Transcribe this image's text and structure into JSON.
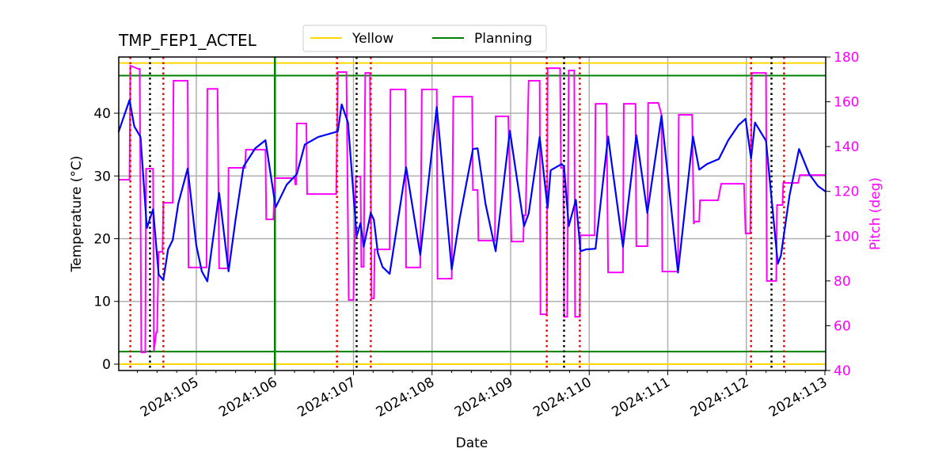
{
  "chart_data": {
    "type": "line",
    "title": "TMP_FEP1_ACTEL",
    "xlabel": "Date",
    "ylabel": "Temperature ($^\\circ$C)",
    "ylabel_display": "Temperature (°C)",
    "y2label": "Pitch (deg)",
    "xlim": [
      104.0126,
      113.01
    ],
    "ylim": [
      -1.01,
      48.96
    ],
    "y2lim": [
      40,
      180
    ],
    "grid": true,
    "legend_placement": "top-center",
    "x_ticks": [
      105,
      106,
      107,
      108,
      109,
      110,
      111,
      112,
      113
    ],
    "x_tick_labels": [
      "2024:105",
      "2024:106",
      "2024:107",
      "2024:108",
      "2024:109",
      "2024:110",
      "2024:111",
      "2024:112",
      "2024:113"
    ],
    "y_ticks": [
      0,
      10,
      20,
      30,
      40
    ],
    "y2_ticks": [
      40,
      60,
      80,
      100,
      120,
      140,
      160,
      180
    ],
    "colors": {
      "temperature": "#0000ff",
      "pitch": "#ff00ff",
      "yellow": "#ffd700",
      "planning": "#008000",
      "red_marker": "#ff0000",
      "black_marker": "#000000",
      "grid": "#b0b0b0"
    },
    "legend": [
      {
        "label": "Yellow",
        "color": "#ffd700"
      },
      {
        "label": "Planning",
        "color": "#008000"
      }
    ],
    "limit_lines": {
      "yellow": [
        48,
        0
      ],
      "planning": [
        46,
        2
      ]
    },
    "planning_vline": 106.0,
    "red_vlines": [
      104.16,
      104.58,
      106.79,
      107.22,
      109.46,
      109.88,
      112.06,
      112.48
    ],
    "black_vlines": [
      104.41,
      107.04,
      109.68,
      112.32
    ],
    "temperature": [
      [
        104.01,
        37.0
      ],
      [
        104.15,
        42.1
      ],
      [
        104.21,
        37.9
      ],
      [
        104.29,
        36.2
      ],
      [
        104.37,
        21.7
      ],
      [
        104.45,
        24.7
      ],
      [
        104.52,
        14.3
      ],
      [
        104.58,
        13.4
      ],
      [
        104.64,
        18.3
      ],
      [
        104.7,
        19.8
      ],
      [
        104.77,
        25.6
      ],
      [
        104.89,
        31.2
      ],
      [
        105.0,
        18.9
      ],
      [
        105.07,
        14.8
      ],
      [
        105.14,
        13.2
      ],
      [
        105.29,
        27.3
      ],
      [
        105.41,
        14.8
      ],
      [
        105.5,
        23.1
      ],
      [
        105.6,
        31.5
      ],
      [
        105.75,
        34.4
      ],
      [
        105.88,
        35.7
      ],
      [
        106.01,
        25.0
      ],
      [
        106.15,
        28.6
      ],
      [
        106.28,
        30.3
      ],
      [
        106.38,
        35.0
      ],
      [
        106.55,
        36.2
      ],
      [
        106.8,
        37.1
      ],
      [
        106.85,
        41.4
      ],
      [
        106.93,
        38.5
      ],
      [
        107.04,
        20.4
      ],
      [
        107.09,
        22.5
      ],
      [
        107.13,
        18.7
      ],
      [
        107.22,
        24.1
      ],
      [
        107.26,
        23.0
      ],
      [
        107.31,
        17.7
      ],
      [
        107.37,
        15.5
      ],
      [
        107.46,
        14.4
      ],
      [
        107.67,
        31.4
      ],
      [
        107.85,
        17.4
      ],
      [
        108.06,
        41.0
      ],
      [
        108.25,
        15.1
      ],
      [
        108.35,
        23.1
      ],
      [
        108.52,
        34.3
      ],
      [
        108.58,
        34.4
      ],
      [
        108.68,
        25.6
      ],
      [
        108.81,
        18.0
      ],
      [
        108.99,
        37.2
      ],
      [
        109.17,
        22.0
      ],
      [
        109.23,
        24.0
      ],
      [
        109.37,
        36.2
      ],
      [
        109.47,
        24.9
      ],
      [
        109.51,
        30.9
      ],
      [
        109.65,
        31.9
      ],
      [
        109.68,
        31.5
      ],
      [
        109.74,
        22.0
      ],
      [
        109.83,
        26.2
      ],
      [
        109.89,
        18.0
      ],
      [
        109.96,
        18.3
      ],
      [
        110.08,
        18.4
      ],
      [
        110.24,
        36.3
      ],
      [
        110.43,
        18.7
      ],
      [
        110.6,
        36.5
      ],
      [
        110.74,
        24.1
      ],
      [
        110.92,
        39.6
      ],
      [
        111.13,
        14.6
      ],
      [
        111.32,
        36.3
      ],
      [
        111.4,
        31.0
      ],
      [
        111.5,
        31.9
      ],
      [
        111.65,
        32.7
      ],
      [
        111.77,
        35.7
      ],
      [
        111.9,
        38.1
      ],
      [
        111.99,
        39.1
      ],
      [
        112.06,
        32.8
      ],
      [
        112.11,
        38.5
      ],
      [
        112.25,
        35.6
      ],
      [
        112.4,
        16.0
      ],
      [
        112.44,
        17.3
      ],
      [
        112.55,
        26.9
      ],
      [
        112.67,
        34.3
      ],
      [
        112.8,
        30.3
      ],
      [
        112.91,
        28.4
      ],
      [
        113.01,
        27.5
      ]
    ],
    "pitch": [
      [
        104.01,
        125.2
      ],
      [
        104.15,
        125.2
      ],
      [
        104.16,
        176.1
      ],
      [
        104.21,
        175.4
      ],
      [
        104.26,
        174.7
      ],
      [
        104.28,
        174.7
      ],
      [
        104.3,
        48.1
      ],
      [
        104.35,
        48.1
      ],
      [
        104.36,
        130.1
      ],
      [
        104.45,
        130.1
      ],
      [
        104.46,
        48.8
      ],
      [
        104.49,
        57.0
      ],
      [
        104.5,
        57.0
      ],
      [
        104.52,
        93.0
      ],
      [
        104.57,
        93.0
      ],
      [
        104.58,
        114.9
      ],
      [
        104.7,
        114.9
      ],
      [
        104.71,
        169.4
      ],
      [
        104.89,
        169.4
      ],
      [
        104.9,
        86.0
      ],
      [
        105.13,
        86.0
      ],
      [
        105.14,
        165.8
      ],
      [
        105.27,
        165.8
      ],
      [
        105.29,
        85.6
      ],
      [
        105.4,
        85.6
      ],
      [
        105.41,
        130.5
      ],
      [
        105.62,
        130.5
      ],
      [
        105.63,
        138.6
      ],
      [
        105.88,
        138.6
      ],
      [
        105.89,
        107.5
      ],
      [
        105.98,
        107.5
      ],
      [
        106.0,
        125.9
      ],
      [
        106.25,
        125.9
      ],
      [
        106.26,
        123.1
      ],
      [
        106.27,
        123.1
      ],
      [
        106.28,
        150.3
      ],
      [
        106.4,
        150.3
      ],
      [
        106.41,
        118.8
      ],
      [
        106.78,
        118.8
      ],
      [
        106.8,
        173.3
      ],
      [
        106.91,
        173.3
      ],
      [
        106.94,
        71.5
      ],
      [
        107.0,
        71.5
      ],
      [
        107.03,
        126.6
      ],
      [
        107.09,
        126.6
      ],
      [
        107.1,
        86.3
      ],
      [
        107.13,
        86.3
      ],
      [
        107.15,
        172.9
      ],
      [
        107.21,
        172.9
      ],
      [
        107.23,
        72.2
      ],
      [
        107.26,
        72.2
      ],
      [
        107.27,
        94.1
      ],
      [
        107.46,
        94.1
      ],
      [
        107.47,
        165.5
      ],
      [
        107.66,
        165.5
      ],
      [
        107.67,
        86.0
      ],
      [
        107.85,
        86.0
      ],
      [
        107.87,
        165.5
      ],
      [
        108.06,
        165.5
      ],
      [
        108.07,
        81.0
      ],
      [
        108.25,
        81.0
      ],
      [
        108.27,
        162.3
      ],
      [
        108.51,
        162.3
      ],
      [
        108.52,
        120.6
      ],
      [
        108.58,
        120.6
      ],
      [
        108.59,
        98.0
      ],
      [
        108.8,
        98.0
      ],
      [
        108.81,
        153.5
      ],
      [
        108.97,
        153.5
      ],
      [
        109.01,
        97.6
      ],
      [
        109.16,
        97.6
      ],
      [
        109.17,
        109.3
      ],
      [
        109.19,
        109.3
      ],
      [
        109.23,
        169.4
      ],
      [
        109.37,
        169.4
      ],
      [
        109.38,
        65.1
      ],
      [
        109.46,
        65.1
      ],
      [
        109.47,
        175.0
      ],
      [
        109.63,
        175.0
      ],
      [
        109.64,
        130.5
      ],
      [
        109.67,
        130.5
      ],
      [
        109.68,
        64.0
      ],
      [
        109.72,
        64.0
      ],
      [
        109.74,
        174.0
      ],
      [
        109.81,
        174.0
      ],
      [
        109.82,
        64.0
      ],
      [
        109.88,
        64.0
      ],
      [
        109.89,
        100.4
      ],
      [
        110.07,
        100.4
      ],
      [
        110.08,
        159.1
      ],
      [
        110.22,
        159.1
      ],
      [
        110.24,
        83.8
      ],
      [
        110.43,
        83.8
      ],
      [
        110.44,
        159.1
      ],
      [
        110.59,
        159.1
      ],
      [
        110.6,
        95.5
      ],
      [
        110.74,
        95.5
      ],
      [
        110.75,
        159.5
      ],
      [
        110.88,
        159.5
      ],
      [
        110.92,
        154.2
      ],
      [
        110.93,
        84.2
      ],
      [
        111.13,
        84.2
      ],
      [
        111.14,
        154.2
      ],
      [
        111.31,
        154.2
      ],
      [
        111.33,
        105.4
      ],
      [
        111.34,
        106.5
      ],
      [
        111.4,
        106.5
      ],
      [
        111.41,
        116.0
      ],
      [
        111.64,
        116.0
      ],
      [
        111.68,
        123.4
      ],
      [
        111.97,
        123.4
      ],
      [
        111.99,
        101.2
      ],
      [
        112.05,
        101.2
      ],
      [
        112.07,
        172.9
      ],
      [
        112.25,
        172.9
      ],
      [
        112.26,
        80.0
      ],
      [
        112.38,
        80.0
      ],
      [
        112.39,
        113.9
      ],
      [
        112.46,
        113.9
      ],
      [
        112.47,
        123.8
      ],
      [
        112.66,
        123.8
      ],
      [
        112.68,
        127.3
      ],
      [
        113.01,
        127.3
      ]
    ]
  }
}
